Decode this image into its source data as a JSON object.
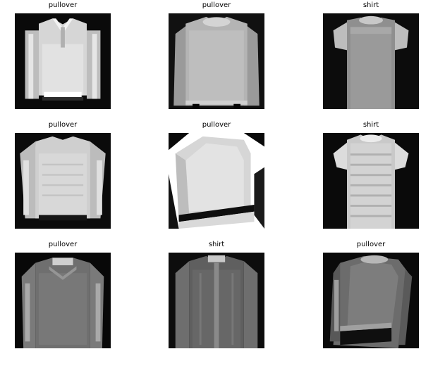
{
  "grid": {
    "items": [
      {
        "label": "pullover"
      },
      {
        "label": "pullover"
      },
      {
        "label": "shirt"
      },
      {
        "label": "pullover"
      },
      {
        "label": "pullover"
      },
      {
        "label": "shirt"
      },
      {
        "label": "pullover"
      },
      {
        "label": "shirt"
      },
      {
        "label": "pullover"
      }
    ]
  }
}
